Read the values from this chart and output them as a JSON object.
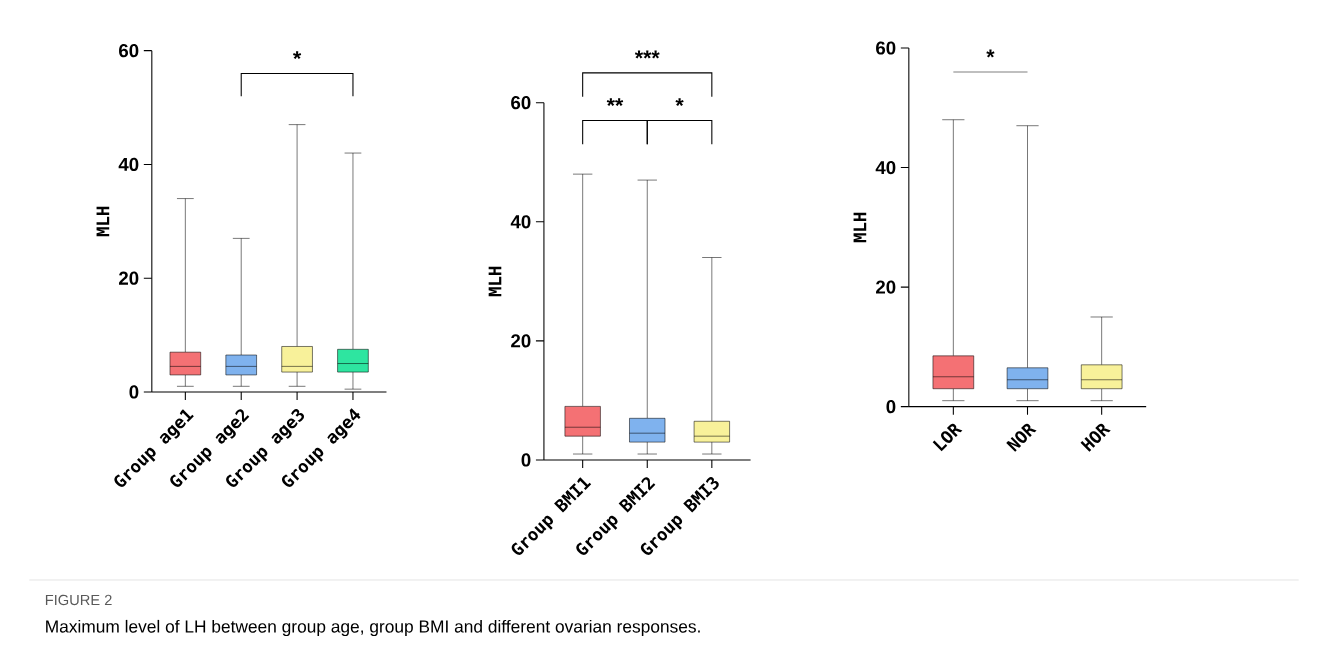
{
  "chart_data": [
    {
      "type": "box",
      "ylabel": "MLH",
      "categories": [
        "Group age1",
        "Group age2",
        "Group age3",
        "Group age4"
      ],
      "colors": [
        "#f47174",
        "#7fb2ee",
        "#f8f19a",
        "#2ee5a0"
      ],
      "boxes": [
        {
          "low": 1,
          "q1": 3,
          "median": 4.5,
          "q3": 7,
          "high": 34
        },
        {
          "low": 1,
          "q1": 3,
          "median": 4.5,
          "q3": 6.5,
          "high": 27
        },
        {
          "low": 1,
          "q1": 3.5,
          "median": 4.5,
          "q3": 8,
          "high": 47
        },
        {
          "low": 0.5,
          "q1": 3.5,
          "median": 5,
          "q3": 7.5,
          "high": 42
        }
      ],
      "ylim": [
        0,
        60
      ],
      "yticks": [
        0,
        20,
        40,
        60
      ],
      "annotations": [
        "*",
        "FIGURE 2",
        "Maximum level of LH between group age, group BMI and different ovarian responses."
      ]
    },
    {
      "type": "box",
      "ylabel": "MLH",
      "categories": [
        "Group BMI1",
        "Group BMI2",
        "Group BMI3"
      ],
      "colors": [
        "#f47174",
        "#7fb2ee",
        "#f8f19a"
      ],
      "boxes": [
        {
          "low": 1,
          "q1": 4,
          "median": 5.5,
          "q3": 9,
          "high": 48
        },
        {
          "low": 1,
          "q1": 3,
          "median": 4.5,
          "q3": 7,
          "high": 47
        },
        {
          "low": 1,
          "q1": 3,
          "median": 4,
          "q3": 6.5,
          "high": 34
        }
      ],
      "ylim": [
        0,
        60
      ],
      "yticks": [
        0,
        20,
        40,
        60
      ],
      "annotations": [
        "***",
        "**",
        "*"
      ]
    },
    {
      "type": "box",
      "ylabel": "MLH",
      "categories": [
        "LOR",
        "NOR",
        "HOR"
      ],
      "colors": [
        "#f47174",
        "#7fb2ee",
        "#f8f19a"
      ],
      "boxes": [
        {
          "low": 1,
          "q1": 3,
          "median": 5,
          "q3": 8.5,
          "high": 48
        },
        {
          "low": 1,
          "q1": 3,
          "median": 4.5,
          "q3": 6.5,
          "high": 47
        },
        {
          "low": 1,
          "q1": 3,
          "median": 4.5,
          "q3": 7,
          "high": 15
        }
      ],
      "ylim": [
        0,
        60
      ],
      "yticks": [
        0,
        20,
        40,
        60
      ],
      "annotations": [
        "*"
      ]
    }
  ]
}
